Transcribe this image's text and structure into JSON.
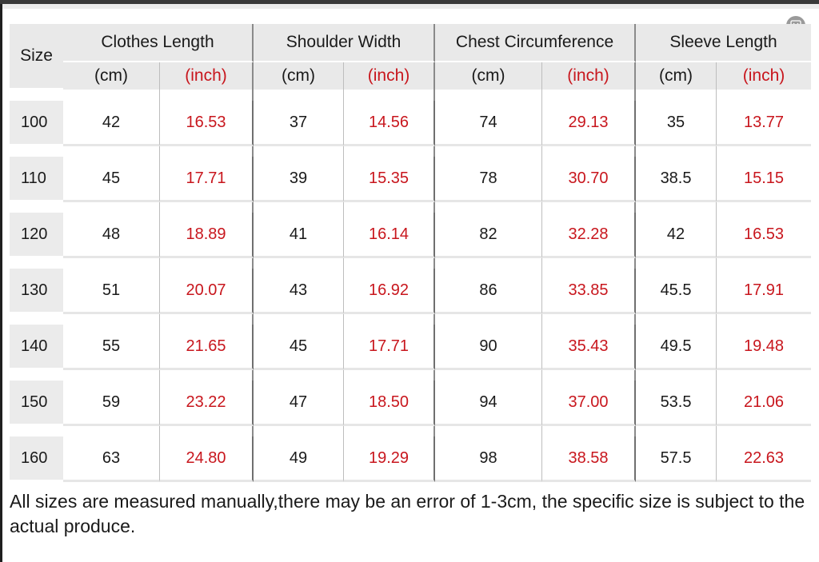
{
  "table": {
    "size_header": "Size",
    "groups": [
      "Clothes Length",
      "Shoulder Width",
      "Chest Circumference",
      "Sleeve Length"
    ],
    "unit_cm": "(cm)",
    "unit_inch": "(inch)",
    "rows": [
      {
        "size": "100",
        "values": [
          "42",
          "16.53",
          "37",
          "14.56",
          "74",
          "29.13",
          "35",
          "13.77"
        ]
      },
      {
        "size": "110",
        "values": [
          "45",
          "17.71",
          "39",
          "15.35",
          "78",
          "30.70",
          "38.5",
          "15.15"
        ]
      },
      {
        "size": "120",
        "values": [
          "48",
          "18.89",
          "41",
          "16.14",
          "82",
          "32.28",
          "42",
          "16.53"
        ]
      },
      {
        "size": "130",
        "values": [
          "51",
          "20.07",
          "43",
          "16.92",
          "86",
          "33.85",
          "45.5",
          "17.91"
        ]
      },
      {
        "size": "140",
        "values": [
          "55",
          "21.65",
          "45",
          "17.71",
          "90",
          "35.43",
          "49.5",
          "19.48"
        ]
      },
      {
        "size": "150",
        "values": [
          "59",
          "23.22",
          "47",
          "18.50",
          "94",
          "37.00",
          "53.5",
          "21.06"
        ]
      },
      {
        "size": "160",
        "values": [
          "63",
          "24.80",
          "49",
          "19.29",
          "98",
          "38.58",
          "57.5",
          "22.63"
        ]
      }
    ]
  },
  "note": "All sizes are measured manually,there may be an error of 1-3cm, the specific size is subject to the actual produce.",
  "colors": {
    "inch_text": "#c8161d",
    "header_bg": "#e9e9e9"
  },
  "icons": {
    "expand": "expand-icon"
  }
}
